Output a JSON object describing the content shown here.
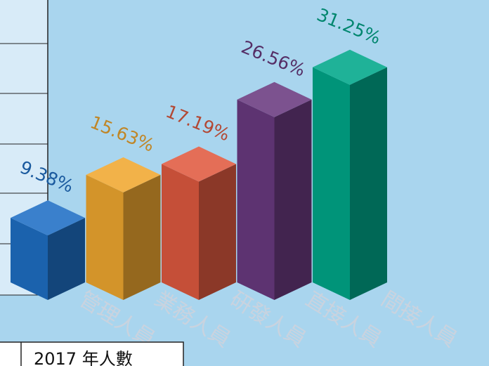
{
  "chart_data": {
    "type": "bar3d",
    "categories": [
      "管理人員",
      "業務人員",
      "研發人員",
      "直接人員",
      "間接人員"
    ],
    "values": [
      9.38,
      15.63,
      17.19,
      26.56,
      31.25
    ],
    "value_labels": [
      "9.38%",
      "15.63%",
      "17.19%",
      "26.56%",
      "31.25%"
    ],
    "colors": [
      "#1f6fc5",
      "#f0a830",
      "#e05a40",
      "#6a3a80",
      "#00a88a"
    ]
  },
  "table": {
    "header": "2017 年人數"
  }
}
